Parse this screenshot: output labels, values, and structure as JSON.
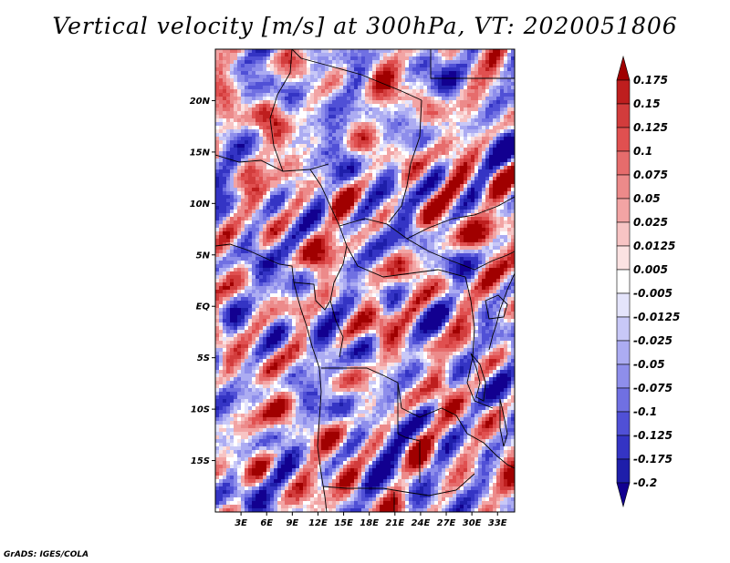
{
  "title": "Vertical velocity [m/s] at 300hPa, VT: 2020051806",
  "credit": "GrADS: IGES/COLA",
  "lat_labels": [
    "20N",
    "15N",
    "10N",
    "5N",
    "EQ",
    "5S",
    "10S",
    "15S"
  ],
  "lat_values": [
    20,
    15,
    10,
    5,
    0,
    -5,
    -10,
    -15
  ],
  "lon_labels": [
    "3E",
    "6E",
    "9E",
    "12E",
    "15E",
    "18E",
    "21E",
    "24E",
    "27E",
    "30E",
    "33E"
  ],
  "lon_values": [
    3,
    6,
    9,
    12,
    15,
    18,
    21,
    24,
    27,
    30,
    33
  ],
  "extent": {
    "lon_min": 0,
    "lon_max": 35,
    "lat_min": -20,
    "lat_max": 25
  },
  "colorbar": {
    "labels": [
      "0.175",
      "0.15",
      "0.125",
      "0.1",
      "0.075",
      "0.05",
      "0.025",
      "0.0125",
      "0.005",
      "-0.005",
      "-0.0125",
      "-0.025",
      "-0.05",
      "-0.075",
      "-0.1",
      "-0.125",
      "-0.175",
      "-0.2"
    ],
    "colors": [
      "#a00000",
      "#be1e1e",
      "#d23c3c",
      "#e05050",
      "#e66c6c",
      "#ec8a8a",
      "#f2a4a4",
      "#f7c4c4",
      "#fbe2e2",
      "#ffffff",
      "#e4e4fb",
      "#c8c8f7",
      "#acacf2",
      "#8e8eeb",
      "#7070e2",
      "#5050d6",
      "#3434c4",
      "#1e1eaa",
      "#120090"
    ]
  },
  "chart_data": {
    "type": "heatmap",
    "title": "Vertical velocity [m/s] at 300hPa, VT: 2020051806",
    "variable": "Vertical velocity",
    "units": "m/s",
    "level": "300hPa",
    "valid_time": "2020051806",
    "x_range_deg_east": [
      0,
      35
    ],
    "y_range_deg_north": [
      -20,
      25
    ],
    "contour_levels": [
      -0.2,
      -0.175,
      -0.125,
      -0.1,
      -0.075,
      -0.05,
      -0.025,
      -0.0125,
      -0.005,
      0.005,
      0.0125,
      0.025,
      0.05,
      0.075,
      0.1,
      0.125,
      0.15,
      0.175
    ]
  }
}
